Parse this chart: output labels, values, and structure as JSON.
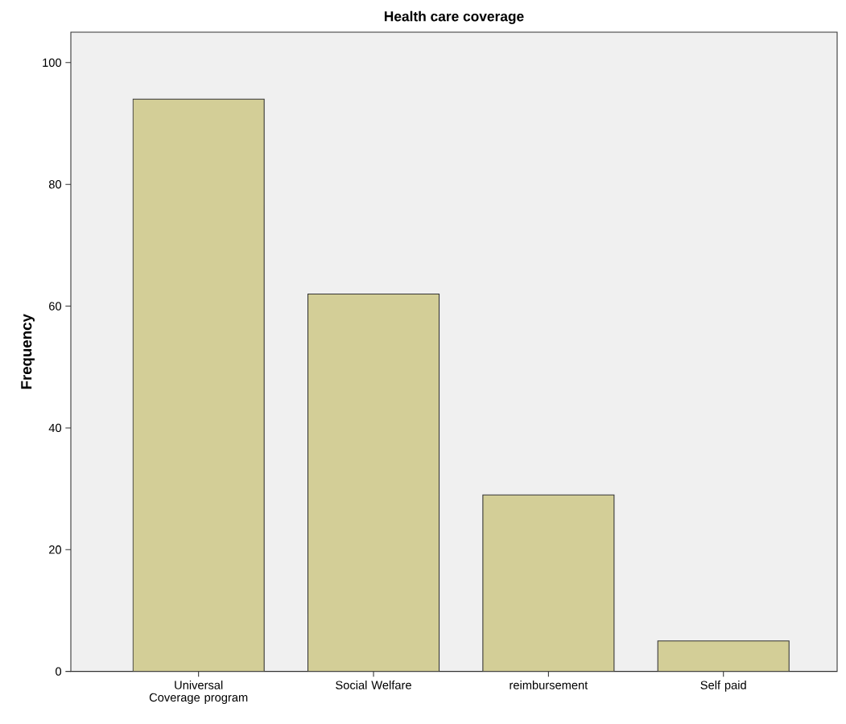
{
  "chart_data": {
    "type": "bar",
    "title": "Health care coverage",
    "ylabel": "Frequency",
    "categories": [
      "Universal Coverage program",
      "Social Welfare",
      "reimbursement",
      "Self paid"
    ],
    "values": [
      94,
      62,
      29,
      5
    ],
    "color": "#d3ce97",
    "ylim": [
      0,
      105
    ],
    "yticks": [
      0,
      20,
      40,
      60,
      80,
      100
    ]
  }
}
